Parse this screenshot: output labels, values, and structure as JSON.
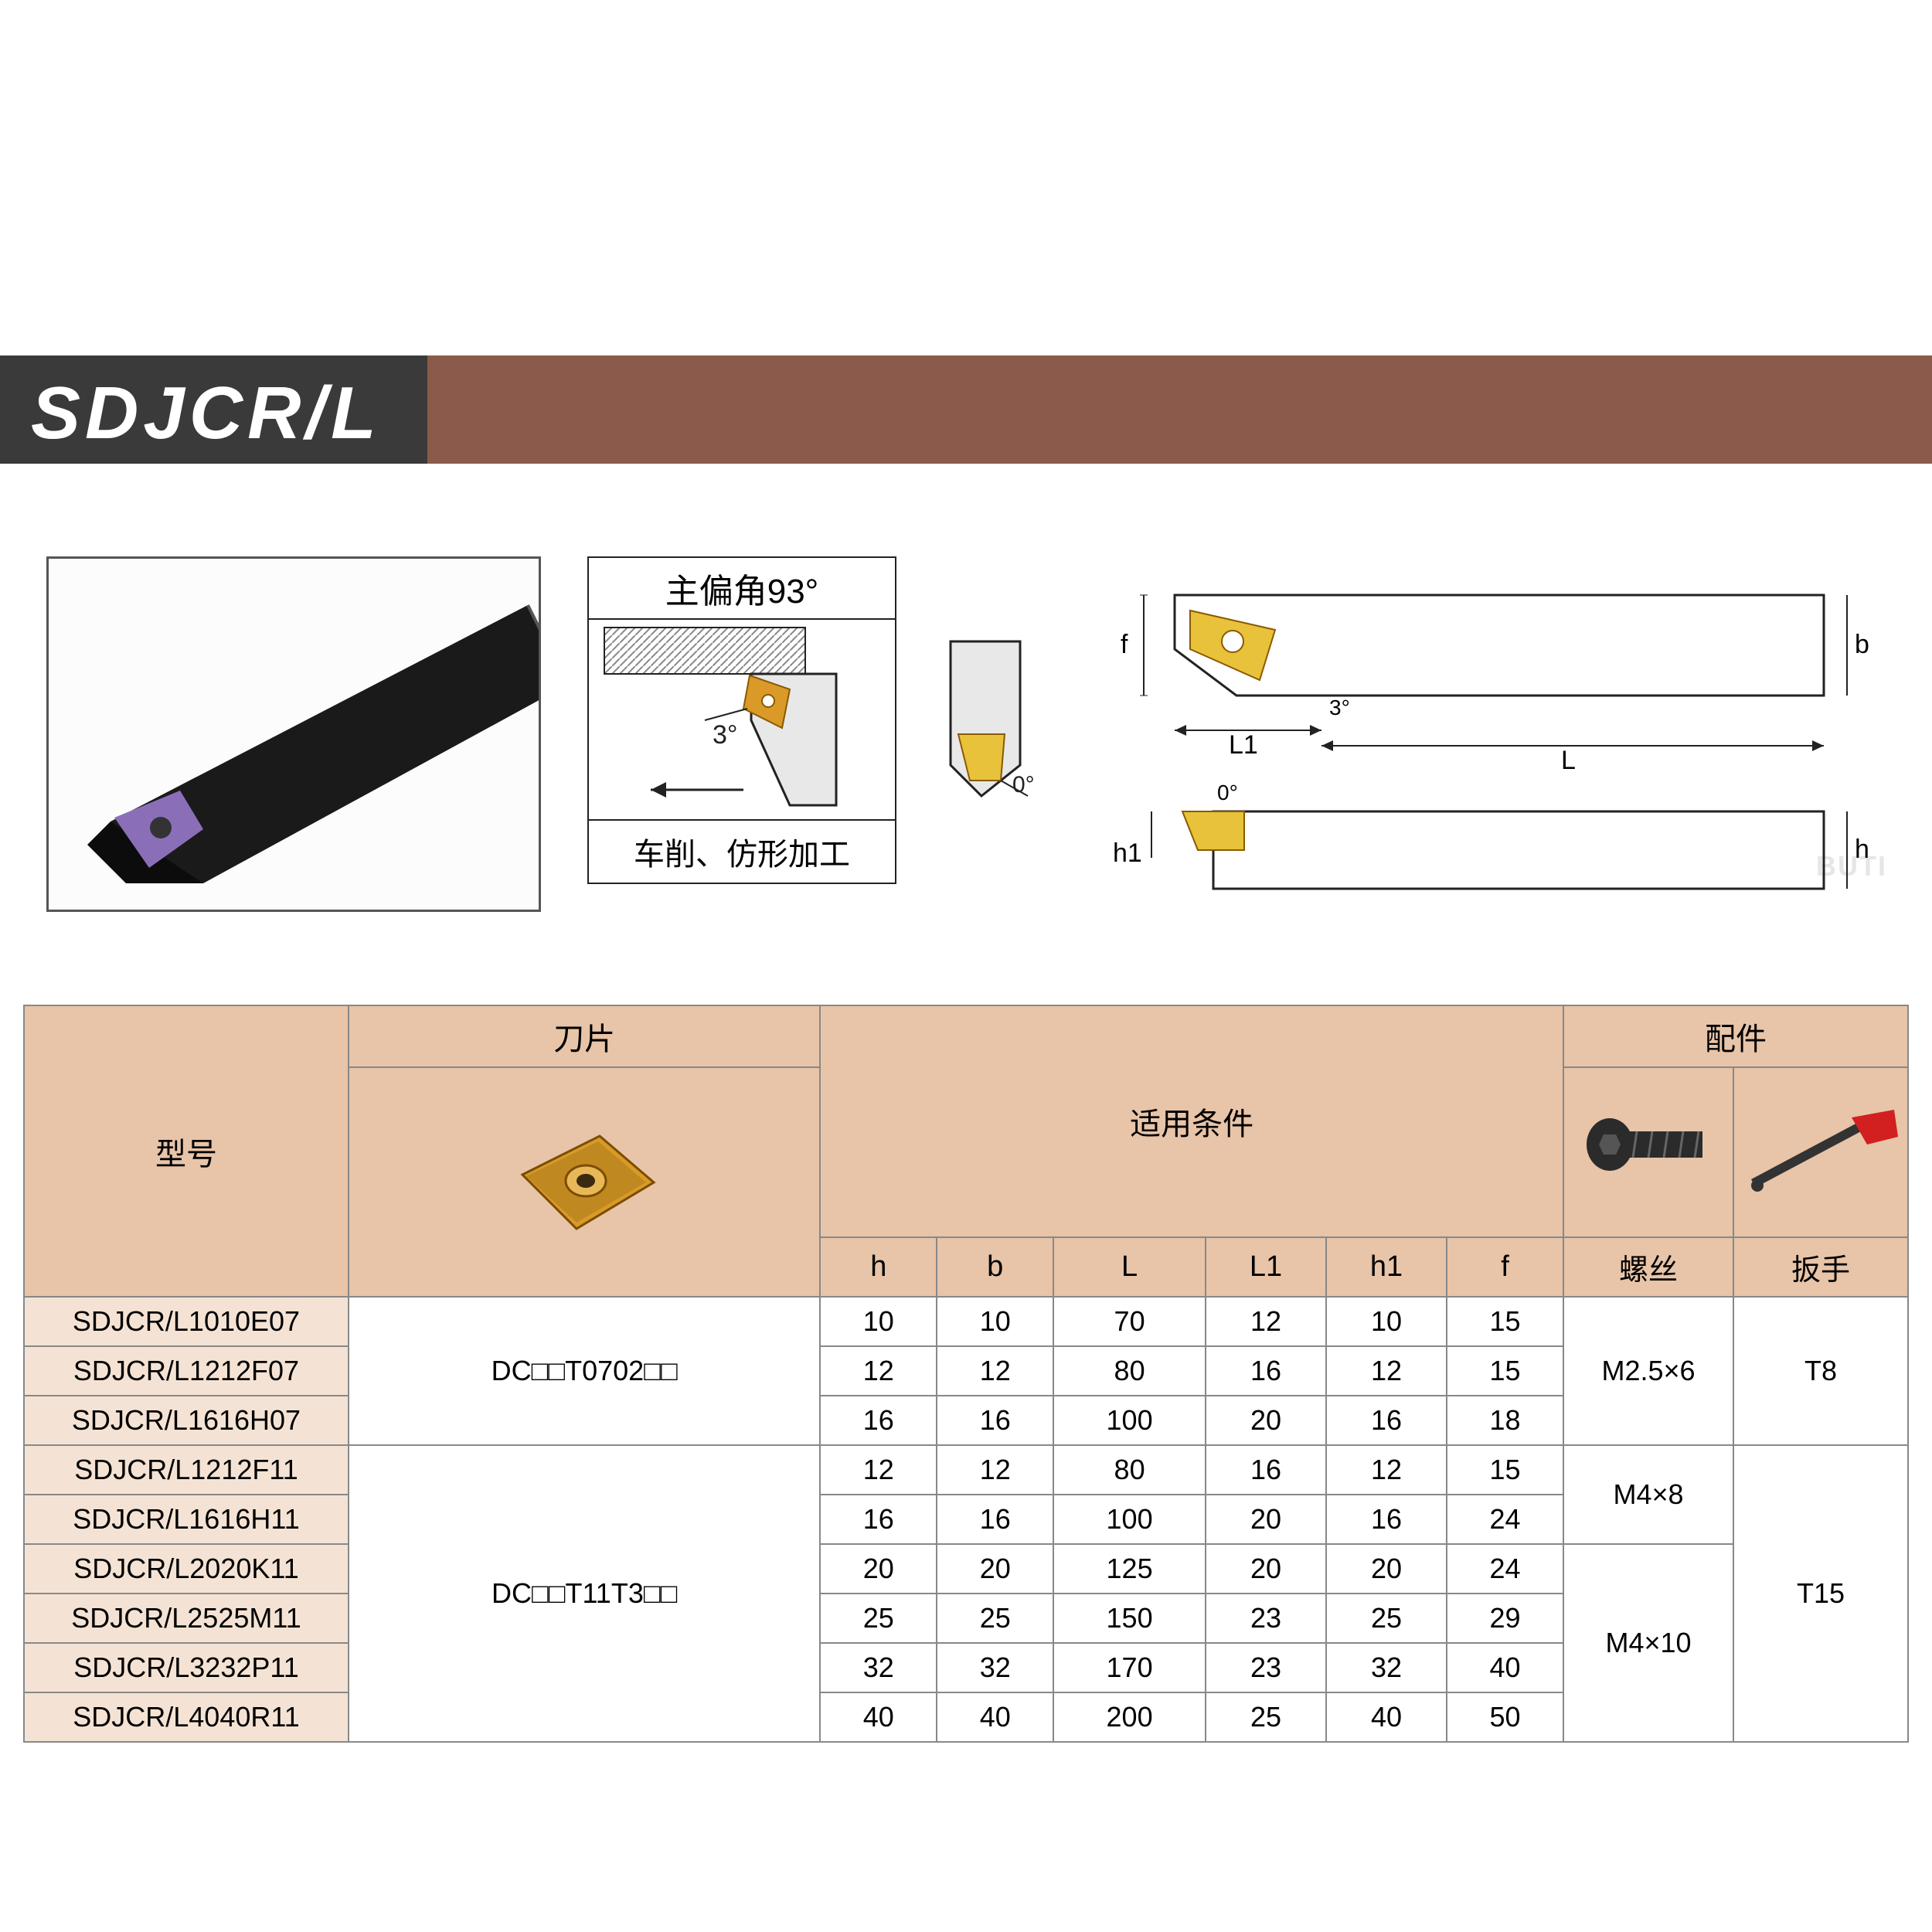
{
  "title": "SDJCR/L",
  "colors": {
    "header_bar": "#8b5a4a",
    "header_tab_bg": "#3a3a3a",
    "header_tab_text": "#ffffff",
    "table_header_bg": "#e8c4a8",
    "model_col_bg": "#f4e3d4",
    "border": "#888888",
    "insert_gold": "#d99a28",
    "insert_dark": "#a86c10",
    "tool_body": "#1a1a1a",
    "diagram_line": "#222222",
    "hatch": "#cfd2d4",
    "wrench_red": "#d21f1f",
    "screw_dark": "#2b2b2b",
    "page_bg": "#ffffff",
    "watermark": "#e6e6e6"
  },
  "diagram_labels": {
    "angle_title": "主偏角93°",
    "angle_small": "3°",
    "angle_caption": "车削、仿形加工",
    "zero_deg": "0°",
    "top_zero": "0°",
    "three_deg": "3°",
    "dim_L": "L",
    "dim_L1": "L1",
    "dim_b": "b",
    "dim_f": "f",
    "dim_h": "h",
    "dim_h1": "h1"
  },
  "table": {
    "headers": {
      "model": "型号",
      "insert": "刀片",
      "conditions": "适用条件",
      "accessories": "配件",
      "h": "h",
      "b": "b",
      "L": "L",
      "L1": "L1",
      "h1": "h1",
      "f": "f",
      "screw": "螺丝",
      "wrench": "扳手"
    },
    "rows": [
      {
        "model": "SDJCR/L1010E07",
        "h": "10",
        "b": "10",
        "L": "70",
        "L1": "12",
        "h1": "10",
        "f": "15"
      },
      {
        "model": "SDJCR/L1212F07",
        "h": "12",
        "b": "12",
        "L": "80",
        "L1": "16",
        "h1": "12",
        "f": "15"
      },
      {
        "model": "SDJCR/L1616H07",
        "h": "16",
        "b": "16",
        "L": "100",
        "L1": "20",
        "h1": "16",
        "f": "18"
      },
      {
        "model": "SDJCR/L1212F11",
        "h": "12",
        "b": "12",
        "L": "80",
        "L1": "16",
        "h1": "12",
        "f": "15"
      },
      {
        "model": "SDJCR/L1616H11",
        "h": "16",
        "b": "16",
        "L": "100",
        "L1": "20",
        "h1": "16",
        "f": "24"
      },
      {
        "model": "SDJCR/L2020K11",
        "h": "20",
        "b": "20",
        "L": "125",
        "L1": "20",
        "h1": "20",
        "f": "24"
      },
      {
        "model": "SDJCR/L2525M11",
        "h": "25",
        "b": "25",
        "L": "150",
        "L1": "23",
        "h1": "25",
        "f": "29"
      },
      {
        "model": "SDJCR/L3232P11",
        "h": "32",
        "b": "32",
        "L": "170",
        "L1": "23",
        "h1": "32",
        "f": "40"
      },
      {
        "model": "SDJCR/L4040R11",
        "h": "40",
        "b": "40",
        "L": "200",
        "L1": "25",
        "h1": "40",
        "f": "50"
      }
    ],
    "insert_groups": [
      {
        "label": "DC□□T0702□□",
        "rowspan": 3
      },
      {
        "label": "DC□□T11T3□□",
        "rowspan": 6
      }
    ],
    "screw_groups": [
      {
        "label": "M2.5×6",
        "rowspan": 3
      },
      {
        "label": "M4×8",
        "rowspan": 2
      },
      {
        "label": "M4×10",
        "rowspan": 4
      }
    ],
    "wrench_groups": [
      {
        "label": "T8",
        "rowspan": 3
      },
      {
        "label": "T15",
        "rowspan": 6
      }
    ]
  },
  "watermark_text": "BUTI"
}
